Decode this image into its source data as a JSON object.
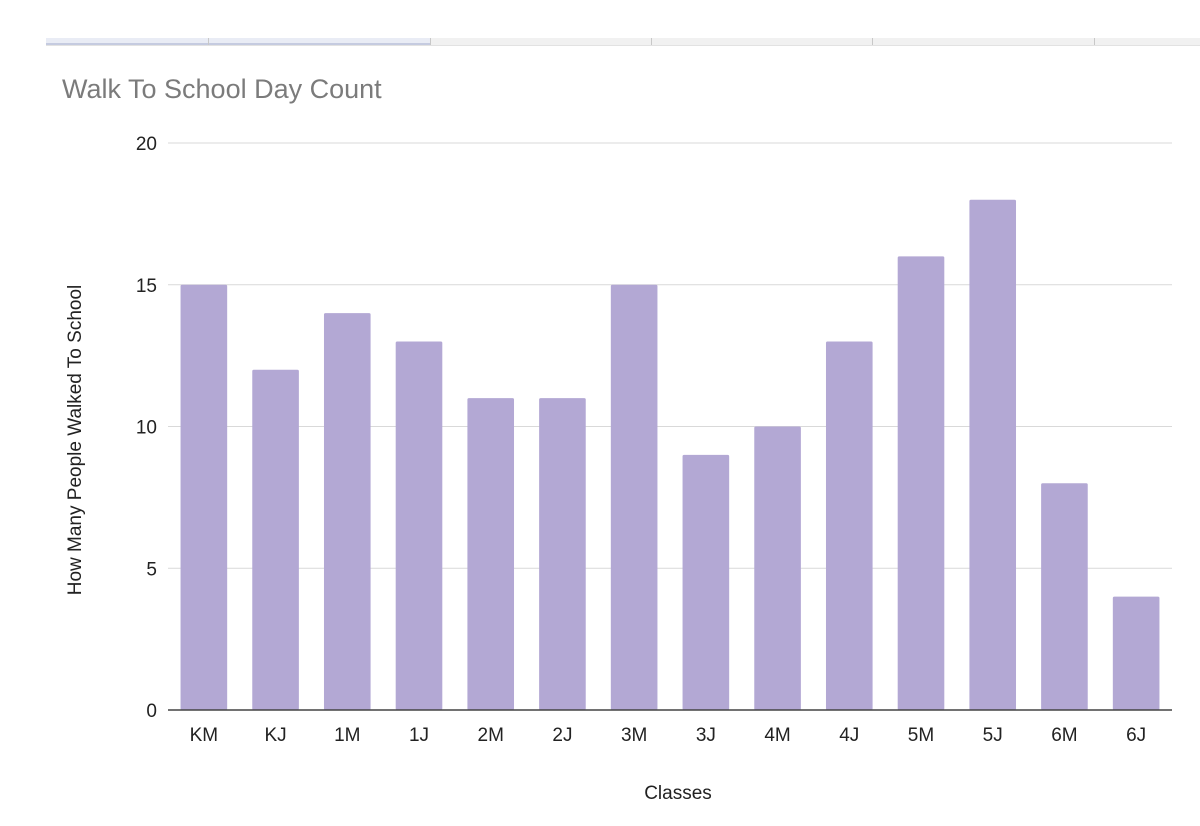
{
  "chart_data": {
    "type": "bar",
    "title": "Walk To School Day Count",
    "xlabel": "Classes",
    "ylabel": "How Many People Walked To School",
    "categories": [
      "KM",
      "KJ",
      "1M",
      "1J",
      "2M",
      "2J",
      "3M",
      "3J",
      "4M",
      "4J",
      "5M",
      "5J",
      "6M",
      "6J"
    ],
    "values": [
      15,
      12,
      14,
      13,
      11,
      11,
      15,
      9,
      10,
      13,
      16,
      18,
      8,
      4
    ],
    "ylim": [
      0,
      20
    ],
    "yticks": [
      0,
      5,
      10,
      15,
      20
    ],
    "grid": true,
    "legend": "none",
    "bar_color": "#b3a8d4"
  }
}
